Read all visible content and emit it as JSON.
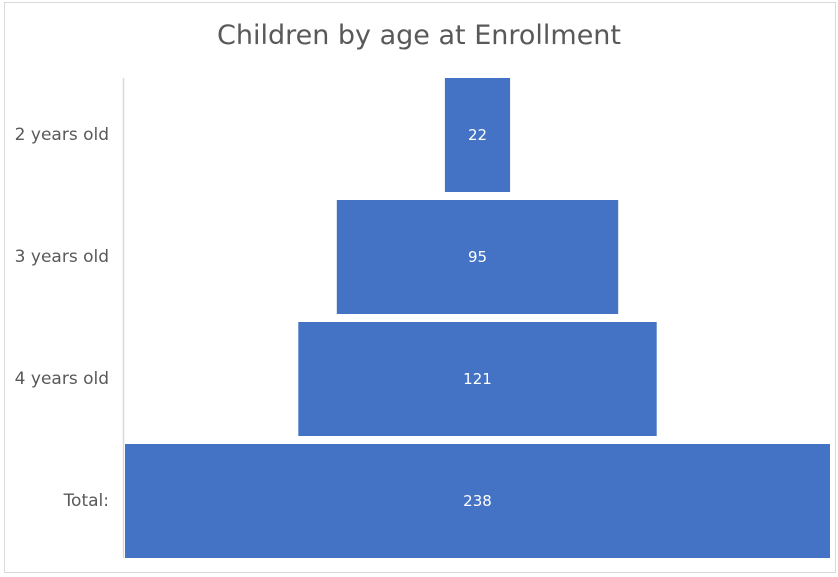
{
  "chart_data": {
    "type": "bar",
    "variant": "funnel",
    "title": "Children by age at Enrollment",
    "categories": [
      "2 years old",
      "3 years old",
      "4 years old",
      "Total:"
    ],
    "values": [
      22,
      95,
      121,
      238
    ],
    "data_labels": [
      "22",
      "95",
      "121",
      "238"
    ],
    "xlabel": "",
    "ylabel": "",
    "grid": false,
    "legend": "none",
    "bar_color": "#4472c4",
    "axis_color": "#d9d9d9"
  }
}
